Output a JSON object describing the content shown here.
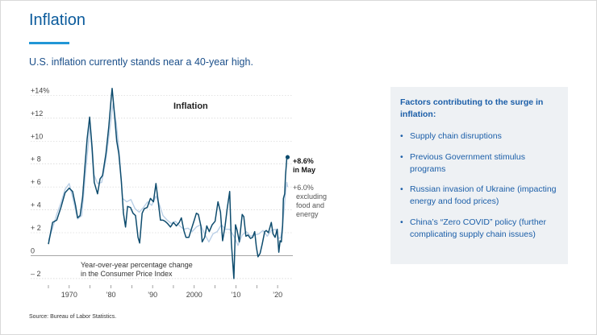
{
  "slide": {
    "title": "Inflation",
    "subtitle": "U.S. inflation currently stands near a 40-year high.",
    "source": "Source: Bureau of Labor Statistics."
  },
  "panel": {
    "title": "Factors contributing to the surge in inflation:",
    "bullets": [
      "Supply chain disruptions",
      "Previous Government stimulus programs",
      "Russian invasion of Ukraine (impacting energy and food prices)",
      "China’s “Zero COVID” policy (further complicating supply chain issues)"
    ]
  },
  "colors": {
    "title": "#0b5b9c",
    "accent": "#2196d6",
    "headline": "#0e4c6e",
    "core": "#b9cfe6",
    "panel_bg": "#eef1f4",
    "panel_text": "#1b5ea8"
  },
  "chart_data": {
    "type": "line",
    "title": "Inflation",
    "ylabel": "Year-over-year percentage change in the Consumer Price Index",
    "ylim": [
      -2.5,
      14.8
    ],
    "xlim": [
      1965,
      2022.5
    ],
    "y_ticks": [
      -2,
      0,
      2,
      4,
      6,
      8,
      10,
      12,
      14
    ],
    "y_tick_labels": [
      "– 2",
      "0",
      "+ 2",
      "+ 4",
      "+ 6",
      "+ 8",
      "+10",
      "+12",
      "+14%"
    ],
    "x_ticks": [
      1970,
      1980,
      1990,
      2000,
      2010,
      2020
    ],
    "x_tick_labels": [
      "1970",
      "’80",
      "’90",
      "2000",
      "’10",
      "’20"
    ],
    "grid": true,
    "series": [
      {
        "role": "headline",
        "color": "#0e4c6e",
        "points": [
          [
            1965,
            1.0
          ],
          [
            1966,
            2.9
          ],
          [
            1967,
            3.1
          ],
          [
            1968,
            4.2
          ],
          [
            1969,
            5.5
          ],
          [
            1970,
            5.9
          ],
          [
            1970.8,
            5.6
          ],
          [
            1971.5,
            4.4
          ],
          [
            1972,
            3.3
          ],
          [
            1972.6,
            3.5
          ],
          [
            1973.2,
            5.1
          ],
          [
            1973.8,
            8.0
          ],
          [
            1974.3,
            10.2
          ],
          [
            1974.9,
            12.1
          ],
          [
            1975.5,
            9.4
          ],
          [
            1976,
            6.4
          ],
          [
            1976.8,
            5.4
          ],
          [
            1977.4,
            6.7
          ],
          [
            1978,
            7.0
          ],
          [
            1978.8,
            8.9
          ],
          [
            1979.5,
            11.3
          ],
          [
            1980.1,
            13.9
          ],
          [
            1980.3,
            14.6
          ],
          [
            1980.8,
            12.6
          ],
          [
            1981.4,
            10.0
          ],
          [
            1981.9,
            8.9
          ],
          [
            1982.5,
            6.5
          ],
          [
            1983,
            3.7
          ],
          [
            1983.5,
            2.5
          ],
          [
            1984,
            4.3
          ],
          [
            1984.7,
            4.2
          ],
          [
            1985.3,
            3.7
          ],
          [
            1985.9,
            3.5
          ],
          [
            1986.5,
            1.6
          ],
          [
            1986.9,
            1.1
          ],
          [
            1987.5,
            3.7
          ],
          [
            1988,
            4.1
          ],
          [
            1988.7,
            4.2
          ],
          [
            1989.5,
            5.0
          ],
          [
            1990.2,
            4.7
          ],
          [
            1990.8,
            6.3
          ],
          [
            1991.3,
            4.9
          ],
          [
            1991.9,
            3.1
          ],
          [
            1992.5,
            3.1
          ],
          [
            1993,
            3.0
          ],
          [
            1993.6,
            2.8
          ],
          [
            1994.3,
            2.5
          ],
          [
            1995,
            2.9
          ],
          [
            1995.7,
            2.6
          ],
          [
            1996.4,
            2.9
          ],
          [
            1996.9,
            3.3
          ],
          [
            1997.5,
            2.2
          ],
          [
            1998,
            1.6
          ],
          [
            1998.7,
            1.6
          ],
          [
            1999.3,
            2.3
          ],
          [
            2000,
            3.1
          ],
          [
            2000.5,
            3.7
          ],
          [
            2001,
            3.6
          ],
          [
            2001.6,
            2.6
          ],
          [
            2001.9,
            1.2
          ],
          [
            2002.5,
            1.6
          ],
          [
            2003,
            2.6
          ],
          [
            2003.6,
            2.1
          ],
          [
            2004.3,
            2.7
          ],
          [
            2005,
            3.0
          ],
          [
            2005.7,
            4.7
          ],
          [
            2006.3,
            3.8
          ],
          [
            2006.8,
            1.3
          ],
          [
            2007.4,
            2.6
          ],
          [
            2007.9,
            4.1
          ],
          [
            2008.5,
            5.6
          ],
          [
            2008.9,
            1.1
          ],
          [
            2009.5,
            -2.0
          ],
          [
            2009.9,
            2.7
          ],
          [
            2010.3,
            2.2
          ],
          [
            2010.8,
            1.2
          ],
          [
            2011.5,
            3.6
          ],
          [
            2011.9,
            3.4
          ],
          [
            2012.4,
            1.7
          ],
          [
            2012.9,
            1.8
          ],
          [
            2013.5,
            1.5
          ],
          [
            2014,
            1.6
          ],
          [
            2014.5,
            2.1
          ],
          [
            2014.9,
            0.8
          ],
          [
            2015.3,
            -0.1
          ],
          [
            2015.8,
            0.2
          ],
          [
            2016.3,
            1.0
          ],
          [
            2016.9,
            2.1
          ],
          [
            2017.3,
            2.2
          ],
          [
            2017.8,
            2.0
          ],
          [
            2018.5,
            2.9
          ],
          [
            2018.9,
            1.9
          ],
          [
            2019.4,
            1.6
          ],
          [
            2019.9,
            2.3
          ],
          [
            2020.3,
            0.3
          ],
          [
            2020.6,
            1.3
          ],
          [
            2020.9,
            1.2
          ],
          [
            2021.2,
            2.6
          ],
          [
            2021.4,
            5.0
          ],
          [
            2021.7,
            5.4
          ],
          [
            2021.9,
            7.0
          ],
          [
            2022.2,
            8.5
          ],
          [
            2022.4,
            8.6
          ]
        ]
      },
      {
        "role": "core",
        "name": "excluding food and energy",
        "color": "#b9cfe6",
        "points": [
          [
            1965,
            1.3
          ],
          [
            1966,
            2.4
          ],
          [
            1967,
            3.6
          ],
          [
            1968,
            4.6
          ],
          [
            1969,
            5.8
          ],
          [
            1970,
            6.3
          ],
          [
            1971,
            4.8
          ],
          [
            1972,
            3.2
          ],
          [
            1973,
            3.5
          ],
          [
            1974,
            7.6
          ],
          [
            1975,
            11.4
          ],
          [
            1975.8,
            7.2
          ],
          [
            1976.8,
            6.3
          ],
          [
            1977.8,
            6.4
          ],
          [
            1978.8,
            8.4
          ],
          [
            1979.8,
            11.2
          ],
          [
            1980.5,
            13.3
          ],
          [
            1981.3,
            11.5
          ],
          [
            1982,
            9.0
          ],
          [
            1982.8,
            5.0
          ],
          [
            1983.8,
            4.7
          ],
          [
            1984.8,
            4.9
          ],
          [
            1985.8,
            4.1
          ],
          [
            1986.8,
            3.8
          ],
          [
            1987.8,
            4.2
          ],
          [
            1988.8,
            4.7
          ],
          [
            1989.8,
            4.4
          ],
          [
            1990.8,
            5.2
          ],
          [
            1991.5,
            4.6
          ],
          [
            1992.5,
            3.5
          ],
          [
            1993.5,
            3.1
          ],
          [
            1994.5,
            2.8
          ],
          [
            1995.5,
            3.0
          ],
          [
            1996.5,
            2.6
          ],
          [
            1997.5,
            2.3
          ],
          [
            1998.5,
            2.4
          ],
          [
            1999.5,
            2.1
          ],
          [
            2000.5,
            2.5
          ],
          [
            2001.5,
            2.7
          ],
          [
            2002.5,
            1.9
          ],
          [
            2003.5,
            1.2
          ],
          [
            2004.5,
            1.9
          ],
          [
            2005.5,
            2.1
          ],
          [
            2006.5,
            2.7
          ],
          [
            2007.5,
            2.3
          ],
          [
            2008.5,
            2.3
          ],
          [
            2009.5,
            1.7
          ],
          [
            2010.5,
            0.9
          ],
          [
            2011.5,
            1.8
          ],
          [
            2012.5,
            2.1
          ],
          [
            2013.5,
            1.7
          ],
          [
            2014.5,
            1.8
          ],
          [
            2015.5,
            1.9
          ],
          [
            2016.5,
            2.2
          ],
          [
            2017.5,
            1.7
          ],
          [
            2018.5,
            2.2
          ],
          [
            2019.5,
            2.3
          ],
          [
            2020.3,
            1.5
          ],
          [
            2020.8,
            1.6
          ],
          [
            2021.3,
            3.0
          ],
          [
            2021.6,
            4.3
          ],
          [
            2021.9,
            5.5
          ],
          [
            2022.2,
            6.4
          ],
          [
            2022.4,
            6.0
          ]
        ]
      }
    ],
    "annotations": {
      "headline_value": "+8.6%",
      "headline_label": "in May",
      "core_value": "+6.0%",
      "core_label": [
        "excluding",
        "food and",
        "energy"
      ],
      "note": [
        "Year-over-year percentage change",
        "in the Consumer Price Index"
      ]
    }
  }
}
